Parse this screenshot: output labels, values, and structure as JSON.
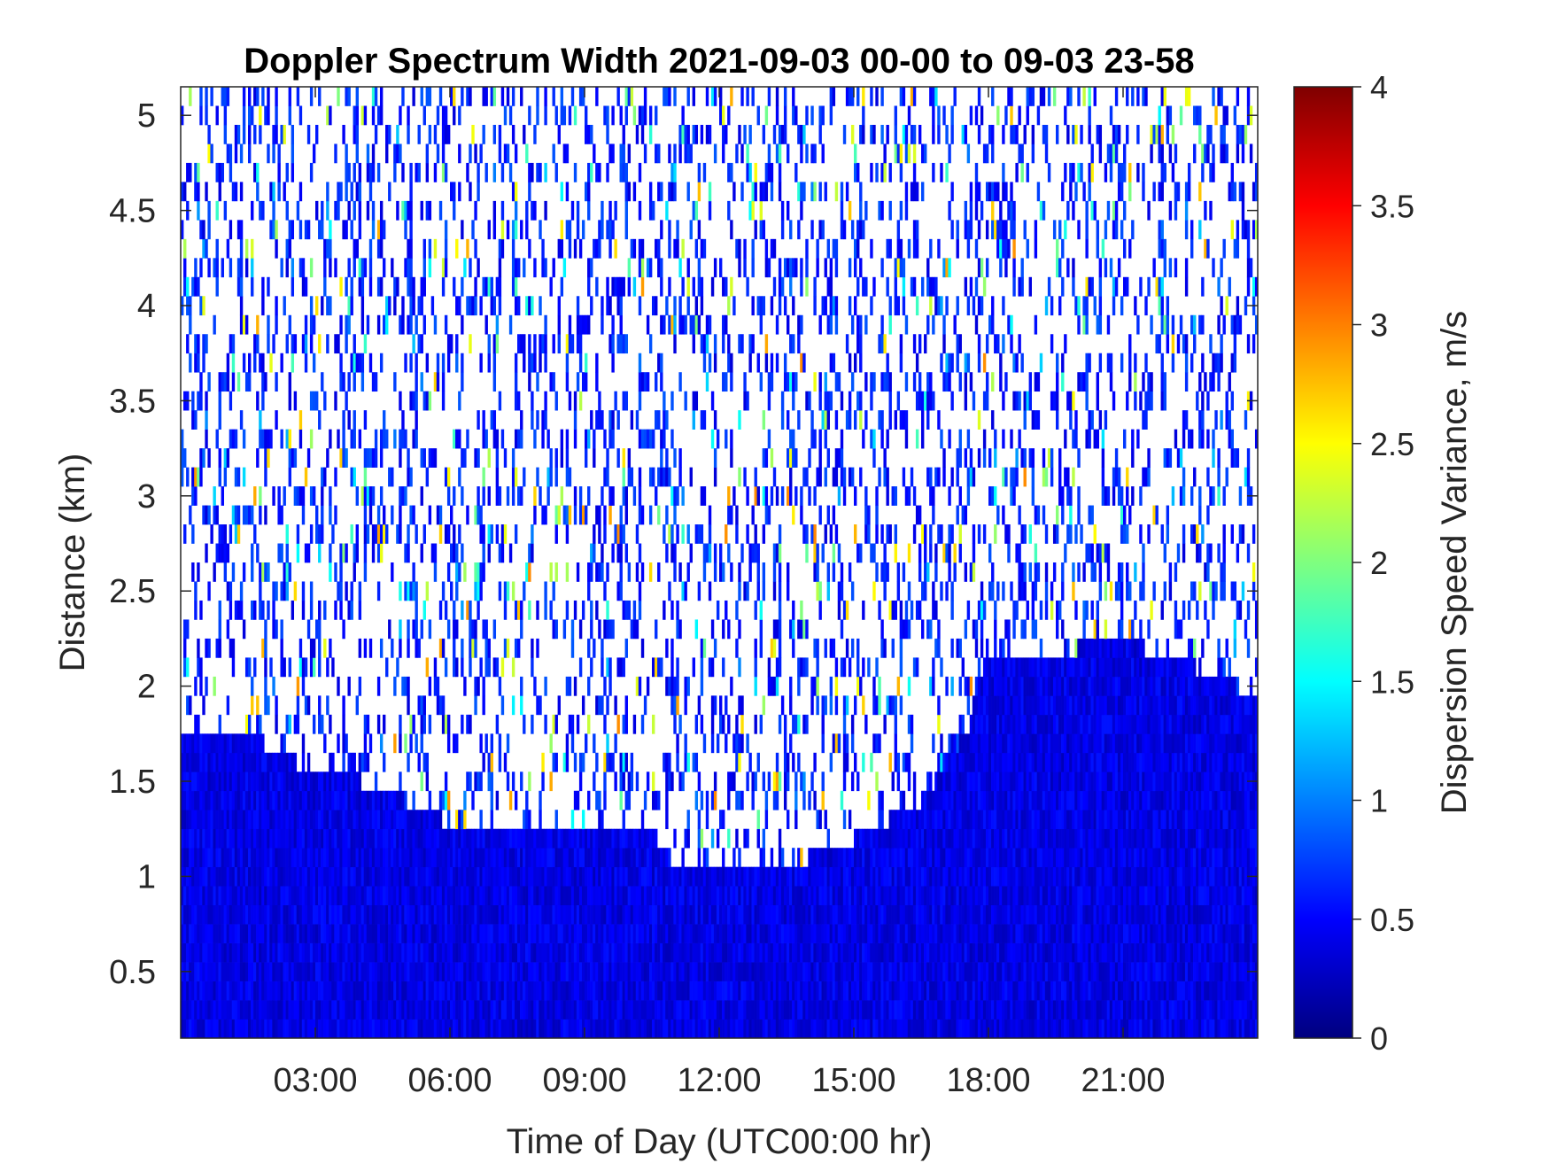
{
  "chart_data": {
    "type": "heatmap",
    "title": "Doppler Spectrum Width 2021-09-03 00-00 to 09-03 23-58",
    "xlabel": "Time of Day (UTC00:00 hr)",
    "ylabel": "Distance (km)",
    "colorbar_label": "Dispersion Speed Variance, m/s",
    "x_range_hours": [
      0,
      24
    ],
    "y_range_km": [
      0.15,
      5.15
    ],
    "c_range": [
      0,
      4
    ],
    "x_ticks": [
      {
        "value": 3,
        "label": "03:00"
      },
      {
        "value": 6,
        "label": "06:00"
      },
      {
        "value": 9,
        "label": "09:00"
      },
      {
        "value": 12,
        "label": "12:00"
      },
      {
        "value": 15,
        "label": "15:00"
      },
      {
        "value": 18,
        "label": "18:00"
      },
      {
        "value": 21,
        "label": "21:00"
      }
    ],
    "y_ticks": [
      {
        "value": 0.5,
        "label": "0.5"
      },
      {
        "value": 1,
        "label": "1"
      },
      {
        "value": 1.5,
        "label": "1.5"
      },
      {
        "value": 2,
        "label": "2"
      },
      {
        "value": 2.5,
        "label": "2.5"
      },
      {
        "value": 3,
        "label": "3"
      },
      {
        "value": 3.5,
        "label": "3.5"
      },
      {
        "value": 4,
        "label": "4"
      },
      {
        "value": 4.5,
        "label": "4.5"
      },
      {
        "value": 5,
        "label": "5"
      }
    ],
    "c_ticks": [
      {
        "value": 0,
        "label": "0"
      },
      {
        "value": 0.5,
        "label": "0.5"
      },
      {
        "value": 1,
        "label": "1"
      },
      {
        "value": 1.5,
        "label": "1.5"
      },
      {
        "value": 2,
        "label": "2"
      },
      {
        "value": 2.5,
        "label": "2.5"
      },
      {
        "value": 3,
        "label": "3"
      },
      {
        "value": 3.5,
        "label": "3.5"
      },
      {
        "value": 4,
        "label": "4"
      }
    ],
    "colormap": "jet",
    "dense_layer_top_km": [
      {
        "hour": 0,
        "km": 1.75
      },
      {
        "hour": 1.5,
        "km": 1.75
      },
      {
        "hour": 2.5,
        "km": 1.6
      },
      {
        "hour": 4,
        "km": 1.5
      },
      {
        "hour": 5.5,
        "km": 1.35
      },
      {
        "hour": 6.5,
        "km": 1.2
      },
      {
        "hour": 7.5,
        "km": 1.25
      },
      {
        "hour": 9,
        "km": 1.3
      },
      {
        "hour": 10.5,
        "km": 1.25
      },
      {
        "hour": 11,
        "km": 1.05
      },
      {
        "hour": 12,
        "km": 1.05
      },
      {
        "hour": 13.5,
        "km": 1.05
      },
      {
        "hour": 15,
        "km": 1.2
      },
      {
        "hour": 16.5,
        "km": 1.4
      },
      {
        "hour": 17.5,
        "km": 1.75
      },
      {
        "hour": 18,
        "km": 2.2
      },
      {
        "hour": 19,
        "km": 2.15
      },
      {
        "hour": 20,
        "km": 2.2
      },
      {
        "hour": 21,
        "km": 2.25
      },
      {
        "hour": 22,
        "km": 2.15
      },
      {
        "hour": 23,
        "km": 2.05
      },
      {
        "hour": 24,
        "km": 1.95
      }
    ],
    "dense_layer_value_ms": 0.4,
    "sparse_region_value_ms": 0.6,
    "grid": false,
    "legend": "colorbar-right"
  }
}
